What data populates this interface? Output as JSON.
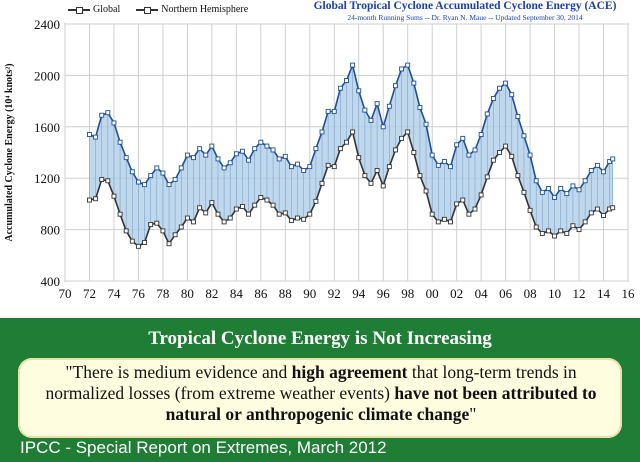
{
  "legend": {
    "series1": "Global",
    "series2": "Northern Hemisphere"
  },
  "header": {
    "title": "Global Tropical Cyclone Accumulated Cyclone Energy (ACE)",
    "subtitle": "24-month Running Sums -- Dr. Ryan N. Maue -- Updated September 30, 2014"
  },
  "banner": {
    "headline": "Tropical Cyclone Energy is Not Increasing",
    "quote_part1": "\"There is medium evidence and ",
    "quote_bold1": "high agreement",
    "quote_part2": " that long-term trends in normalized losses (from extreme weather events) ",
    "quote_bold2": "have not been attributed to natural or anthropogenic climate change",
    "quote_part3": "\"",
    "source": "IPCC - Special Report on Extremes, March 2012"
  },
  "colors": {
    "global_fill": "#a9cbe8",
    "global_line": "#1d4f9c",
    "nh_line": "#333333",
    "grid": "#cfcfcf",
    "banner": "#1f7d35"
  },
  "chart_data": {
    "type": "area",
    "title": "Global Tropical Cyclone Accumulated Cyclone Energy (ACE)",
    "subtitle": "24-month Running Sums -- Dr. Ryan N. Maue -- Updated September 30, 2014",
    "xlabel": "",
    "ylabel": "Accumulated Cyclone Energy (10⁴ knots²)",
    "xlim": [
      1970,
      2016
    ],
    "ylim": [
      400,
      2400
    ],
    "x_ticks": [
      "70",
      "72",
      "74",
      "76",
      "78",
      "80",
      "82",
      "84",
      "86",
      "88",
      "90",
      "92",
      "94",
      "96",
      "98",
      "00",
      "02",
      "04",
      "06",
      "08",
      "10",
      "12",
      "14",
      "16"
    ],
    "y_ticks": [
      "400",
      "800",
      "1200",
      "1600",
      "2000",
      "2400"
    ],
    "x": [
      1972.0,
      1972.5,
      1973.0,
      1973.5,
      1974.0,
      1974.5,
      1975.0,
      1975.5,
      1976.0,
      1976.5,
      1977.0,
      1977.5,
      1978.0,
      1978.5,
      1979.0,
      1979.5,
      1980.0,
      1980.5,
      1981.0,
      1981.5,
      1982.0,
      1982.5,
      1983.0,
      1983.5,
      1984.0,
      1984.5,
      1985.0,
      1985.5,
      1986.0,
      1986.5,
      1987.0,
      1987.5,
      1988.0,
      1988.5,
      1989.0,
      1989.5,
      1990.0,
      1990.5,
      1991.0,
      1991.5,
      1992.0,
      1992.5,
      1993.0,
      1993.5,
      1994.0,
      1994.5,
      1995.0,
      1995.5,
      1996.0,
      1996.5,
      1997.0,
      1997.5,
      1998.0,
      1998.5,
      1999.0,
      1999.5,
      2000.0,
      2000.5,
      2001.0,
      2001.5,
      2002.0,
      2002.5,
      2003.0,
      2003.5,
      2004.0,
      2004.5,
      2005.0,
      2005.5,
      2006.0,
      2006.5,
      2007.0,
      2007.5,
      2008.0,
      2008.5,
      2009.0,
      2009.5,
      2010.0,
      2010.5,
      2011.0,
      2011.5,
      2012.0,
      2012.5,
      2013.0,
      2013.5,
      2014.0,
      2014.5,
      2014.75
    ],
    "series": [
      {
        "name": "Global",
        "values": [
          1540,
          1520,
          1690,
          1710,
          1630,
          1480,
          1360,
          1250,
          1170,
          1150,
          1220,
          1280,
          1240,
          1150,
          1190,
          1280,
          1380,
          1360,
          1430,
          1380,
          1450,
          1350,
          1280,
          1320,
          1390,
          1410,
          1340,
          1430,
          1480,
          1450,
          1420,
          1350,
          1370,
          1290,
          1310,
          1260,
          1290,
          1430,
          1560,
          1720,
          1720,
          1900,
          1960,
          2080,
          1880,
          1730,
          1650,
          1780,
          1600,
          1760,
          1920,
          2050,
          2080,
          1940,
          1750,
          1620,
          1380,
          1300,
          1330,
          1290,
          1460,
          1510,
          1380,
          1420,
          1540,
          1700,
          1820,
          1900,
          1940,
          1850,
          1680,
          1530,
          1380,
          1180,
          1090,
          1120,
          1050,
          1120,
          1080,
          1140,
          1110,
          1180,
          1260,
          1300,
          1250,
          1330,
          1350
        ]
      },
      {
        "name": "Northern Hemisphere",
        "values": [
          1030,
          1040,
          1190,
          1180,
          1060,
          920,
          790,
          710,
          670,
          700,
          840,
          850,
          790,
          690,
          760,
          820,
          890,
          860,
          970,
          930,
          1010,
          920,
          860,
          890,
          960,
          980,
          920,
          990,
          1050,
          1030,
          990,
          920,
          930,
          870,
          890,
          880,
          920,
          1020,
          1160,
          1300,
          1290,
          1430,
          1480,
          1560,
          1360,
          1220,
          1160,
          1260,
          1140,
          1290,
          1420,
          1510,
          1560,
          1400,
          1220,
          1100,
          920,
          860,
          880,
          860,
          1000,
          1030,
          920,
          960,
          1070,
          1210,
          1340,
          1400,
          1450,
          1370,
          1220,
          1090,
          950,
          820,
          770,
          790,
          750,
          790,
          770,
          830,
          800,
          860,
          930,
          960,
          910,
          960,
          970
        ]
      }
    ],
    "grid": true,
    "legend": "top-left"
  }
}
